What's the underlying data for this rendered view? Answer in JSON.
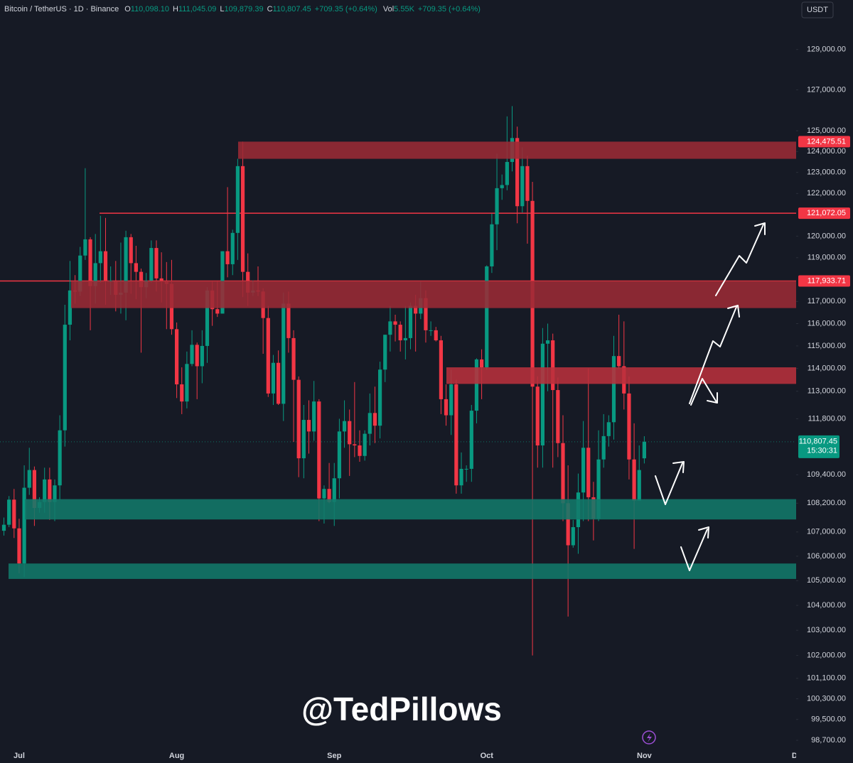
{
  "chart_data": {
    "type": "candlestick",
    "title": "Bitcoin / TetherUS · 1D · Binance",
    "header_fields": [
      {
        "key": "O",
        "value": "110,098.10"
      },
      {
        "key": "H",
        "value": "111,045.09"
      },
      {
        "key": "L",
        "value": "109,879.39"
      },
      {
        "key": "C",
        "value": "110,807.45"
      }
    ],
    "change": "+709.35 (+0.64%)",
    "volume_key": "Vol",
    "volume": "5.55K",
    "volume_change": "+709.35 (+0.64%)",
    "currency": "USDT",
    "watermark": "@TedPillows",
    "categories": [
      null,
      null,
      null,
      "Jul",
      null,
      null,
      null,
      null,
      null,
      null,
      null,
      null,
      null,
      null,
      null,
      null,
      null,
      null,
      null,
      null,
      null,
      null,
      null,
      null,
      null,
      null,
      null,
      null,
      null,
      null,
      null,
      null,
      null,
      null,
      "Aug",
      null,
      null,
      null,
      null,
      null,
      null,
      null,
      null,
      null,
      null,
      null,
      null,
      null,
      null,
      null,
      null,
      null,
      null,
      null,
      null,
      null,
      null,
      null,
      null,
      null,
      null,
      null,
      null,
      null,
      null,
      "Sep",
      null,
      null,
      null,
      null,
      null,
      null,
      null,
      null,
      null,
      null,
      null,
      null,
      null,
      null,
      null,
      null,
      null,
      null,
      null,
      null,
      null,
      null,
      null,
      null,
      null,
      null,
      null,
      null,
      null,
      "Oct",
      null,
      null,
      null,
      null,
      null,
      null,
      null,
      null,
      null,
      null,
      null,
      null,
      null,
      null,
      null,
      null,
      null,
      null,
      null,
      null,
      null,
      null,
      null,
      null,
      null,
      null,
      null,
      null,
      null,
      null,
      "Nov",
      null,
      null,
      null,
      null,
      null,
      null,
      null,
      null,
      null,
      null,
      null,
      null,
      null,
      null,
      null,
      null,
      null,
      null,
      null,
      null,
      null,
      null,
      null,
      null,
      null,
      null,
      null,
      null,
      null,
      "De"
    ],
    "open": [
      107050,
      107300,
      108350,
      107150,
      105700,
      108850,
      109600,
      108000,
      108250,
      109200,
      108250,
      108950,
      111300,
      115950,
      117500,
      117450,
      119100,
      119850,
      117700,
      118750,
      119300,
      117950,
      117950,
      117300,
      117400,
      119950,
      118750,
      118350,
      117650,
      117950,
      119450,
      118050,
      117900,
      117800,
      115750,
      113300,
      112550,
      114200,
      115050,
      114100,
      115000,
      117500,
      116650,
      116450,
      119300,
      118700,
      120150,
      123300,
      118350,
      117400,
      117500,
      117450,
      116250,
      112900,
      114250,
      112450,
      116900,
      115350,
      113500,
      110100,
      111750,
      111250,
      112550,
      108400,
      108800,
      108250,
      109250,
      111250,
      111700,
      110700,
      110650,
      110200,
      111150,
      112050,
      111500,
      113950,
      115500,
      116100,
      115950,
      115250,
      115350,
      116800,
      116450,
      117150,
      115700,
      115700,
      115250,
      112650,
      111950,
      113300,
      108950,
      109650,
      109650,
      112150,
      114400,
      114050,
      118600,
      120550,
      122250,
      122400,
      123500,
      124650,
      121400,
      123300,
      121650,
      113200,
      110650,
      115100,
      115250,
      113050,
      110750,
      108200,
      106450,
      107200,
      108650,
      110550,
      108450,
      107550,
      110050,
      111050,
      111650,
      114550,
      114100,
      112900,
      110050,
      108300,
      110098.1,
      null,
      null,
      null,
      null,
      null,
      null,
      null,
      null,
      null,
      null,
      null,
      null,
      null,
      null,
      null,
      null,
      null,
      null,
      null,
      null,
      null,
      null,
      null,
      null,
      null,
      null,
      null,
      null,
      null,
      null
    ],
    "high": [
      107600,
      108500,
      108800,
      107550,
      109800,
      110550,
      109750,
      108450,
      109700,
      109700,
      109200,
      111950,
      116850,
      118850,
      118200,
      119500,
      123200,
      119950,
      120100,
      120950,
      120850,
      118600,
      118850,
      119700,
      120250,
      120100,
      119550,
      118500,
      118300,
      119800,
      119800,
      119250,
      118800,
      118900,
      116050,
      114050,
      114750,
      115700,
      115150,
      115700,
      117650,
      117900,
      117950,
      119300,
      122300,
      120300,
      123650,
      124475.51,
      119200,
      117950,
      118600,
      117600,
      116800,
      114600,
      114800,
      117400,
      117450,
      115700,
      113650,
      112400,
      112600,
      113450,
      112650,
      108950,
      109900,
      109900,
      111800,
      112600,
      112200,
      113400,
      111300,
      111300,
      112900,
      113200,
      114300,
      115500,
      116800,
      116400,
      116100,
      116800,
      116950,
      117300,
      117900,
      117500,
      116100,
      115850,
      115450,
      113300,
      113950,
      113500,
      110350,
      109800,
      112400,
      114450,
      114850,
      118650,
      121050,
      123900,
      122900,
      125700,
      126200,
      125200,
      124200,
      123800,
      122550,
      113650,
      115800,
      116000,
      115550,
      113600,
      111950,
      109800,
      107500,
      109450,
      111700,
      114000,
      109100,
      111300,
      112000,
      111950,
      115450,
      116400,
      116100,
      113650,
      111600,
      110650,
      111045.09,
      null,
      null,
      null,
      null,
      null,
      null,
      null,
      null,
      null,
      null,
      null,
      null,
      null,
      null,
      null,
      null,
      null,
      null,
      null,
      null,
      null,
      null,
      null,
      null,
      null,
      null,
      null,
      null,
      null,
      null
    ],
    "low": [
      106850,
      107200,
      106750,
      105300,
      105150,
      108550,
      107250,
      107800,
      107800,
      107500,
      107450,
      108350,
      110600,
      115250,
      116900,
      117250,
      118900,
      115700,
      116900,
      117850,
      116850,
      117300,
      116550,
      116450,
      116150,
      117350,
      117100,
      114700,
      117150,
      117850,
      117450,
      116950,
      115750,
      115500,
      112700,
      112000,
      112250,
      114100,
      112650,
      113350,
      114250,
      115900,
      116300,
      116450,
      118100,
      118200,
      118900,
      117200,
      116800,
      117250,
      117250,
      114650,
      112750,
      112400,
      112400,
      111700,
      114700,
      110800,
      109300,
      109250,
      110300,
      110850,
      107450,
      107350,
      108200,
      107250,
      108400,
      110550,
      109350,
      110150,
      109950,
      110000,
      110650,
      110750,
      110950,
      113400,
      114750,
      115200,
      114750,
      114400,
      114850,
      114750,
      116200,
      115150,
      115450,
      115200,
      112000,
      111500,
      111100,
      108600,
      108600,
      109100,
      109100,
      111600,
      112650,
      113950,
      118300,
      119350,
      121700,
      122150,
      123050,
      120600,
      121100,
      119650,
      102000,
      109700,
      109700,
      113000,
      109700,
      110150,
      107450,
      103550,
      106350,
      106100,
      107450,
      107450,
      106650,
      107450,
      109700,
      110600,
      110900,
      114000,
      112200,
      109200,
      106300,
      108300,
      109879.39,
      null,
      null,
      null,
      null,
      null,
      null,
      null,
      null,
      null,
      null,
      null,
      null,
      null,
      null,
      null,
      null,
      null,
      null,
      null,
      null,
      null,
      null,
      null,
      null,
      null,
      null,
      null,
      null,
      null,
      null
    ],
    "close": [
      107300,
      108350,
      107150,
      105700,
      108850,
      109600,
      108000,
      108250,
      109200,
      108250,
      108950,
      111300,
      115950,
      117500,
      117450,
      119100,
      119850,
      117700,
      118750,
      119300,
      117950,
      117950,
      117300,
      117400,
      119950,
      118750,
      118350,
      117650,
      117950,
      119450,
      118050,
      117900,
      117800,
      115750,
      113300,
      112550,
      114200,
      115050,
      114100,
      115000,
      117500,
      116650,
      116450,
      119300,
      118700,
      120150,
      123300,
      118350,
      117400,
      117500,
      117450,
      116250,
      112900,
      114250,
      112450,
      116900,
      115350,
      113500,
      110100,
      111750,
      111250,
      112550,
      108400,
      108800,
      108250,
      109250,
      111250,
      111700,
      110700,
      110650,
      110200,
      111150,
      112050,
      111500,
      113950,
      115500,
      116100,
      115950,
      115250,
      115350,
      116800,
      116450,
      117150,
      115700,
      115700,
      115250,
      112650,
      111950,
      113300,
      108950,
      109650,
      109650,
      112150,
      114400,
      114050,
      118600,
      120550,
      122250,
      122400,
      123500,
      124650,
      121400,
      123300,
      121650,
      113200,
      110650,
      115100,
      115250,
      113050,
      110750,
      108200,
      106450,
      107200,
      108650,
      110550,
      108450,
      107550,
      110050,
      111050,
      111650,
      114550,
      114100,
      112900,
      110050,
      108300,
      109600,
      110807.45,
      null,
      null,
      null,
      null,
      null,
      null,
      null,
      null,
      null,
      null,
      null,
      null,
      null,
      null,
      null,
      null,
      null,
      null,
      null,
      null,
      null,
      null,
      null,
      null,
      null,
      null,
      null,
      null,
      null,
      null
    ],
    "up_color": "#089981",
    "down_color": "#f23645",
    "log_scale": true,
    "grid": false,
    "ylim": [
      98430,
      131500
    ],
    "yticks": [
      {
        "value": 129000,
        "label": "129,000.00"
      },
      {
        "value": 127000,
        "label": "127,000.00"
      },
      {
        "value": 125000,
        "label": "125,000.00"
      },
      {
        "value": 124000,
        "label": "124,000.00"
      },
      {
        "value": 123000,
        "label": "123,000.00"
      },
      {
        "value": 122000,
        "label": "122,000.00"
      },
      {
        "value": 120000,
        "label": "120,000.00"
      },
      {
        "value": 119000,
        "label": "119,000.00"
      },
      {
        "value": 117000,
        "label": "117,000.00"
      },
      {
        "value": 116000,
        "label": "116,000.00"
      },
      {
        "value": 115000,
        "label": "115,000.00"
      },
      {
        "value": 114000,
        "label": "114,000.00"
      },
      {
        "value": 113000,
        "label": "113,000.00"
      },
      {
        "value": 111800,
        "label": "111,800.00"
      },
      {
        "value": 109400,
        "label": "109,400.00"
      },
      {
        "value": 108200,
        "label": "108,200.00"
      },
      {
        "value": 107000,
        "label": "107,000.00"
      },
      {
        "value": 106000,
        "label": "106,000.00"
      },
      {
        "value": 105000,
        "label": "105,000.00"
      },
      {
        "value": 104000,
        "label": "104,000.00"
      },
      {
        "value": 103000,
        "label": "103,000.00"
      },
      {
        "value": 102000,
        "label": "102,000.00"
      },
      {
        "value": 101100,
        "label": "101,100.00"
      },
      {
        "value": 100300,
        "label": "100,300.00"
      },
      {
        "value": 99500,
        "label": "99,500.00"
      },
      {
        "value": 98700,
        "label": "98,700.00"
      }
    ],
    "zones": [
      {
        "high": 124475.51,
        "low": 123650,
        "color": "#9b2a35"
      },
      {
        "high": 117933.71,
        "low": 116700,
        "color": "#9b2a35"
      },
      {
        "high": 114050,
        "low": 113320,
        "color": "#b8303c"
      },
      {
        "high": 108370,
        "low": 107520,
        "color": "#12796a"
      },
      {
        "high": 105700,
        "low": 105070,
        "color": "#12796a"
      }
    ],
    "price_labels": [
      {
        "value": 124475.51,
        "label": "124,475.51",
        "line": false,
        "color": "#f23645"
      },
      {
        "value": 121072.05,
        "label": "121,072.05",
        "line": true,
        "color": "#f23645"
      },
      {
        "value": 117933.71,
        "label": "117,933.71",
        "line": true,
        "color": "#f23645"
      }
    ],
    "last_price": {
      "value": 110807.45,
      "label": "110,807.45",
      "countdown": "15:30:31",
      "color": "#089981"
    }
  }
}
